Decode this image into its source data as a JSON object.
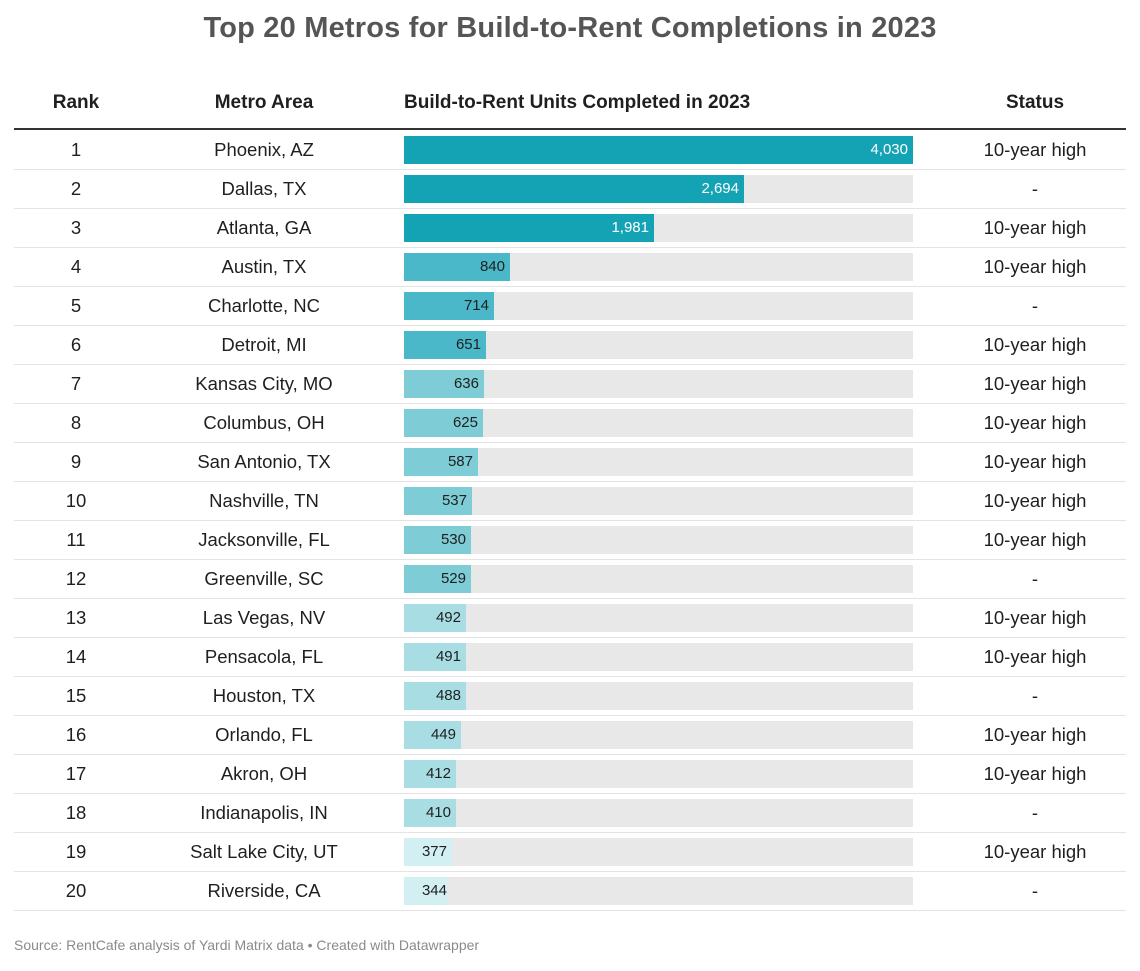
{
  "title": "Top 20 Metros for Build-to-Rent Completions in 2023",
  "headers": {
    "rank": "Rank",
    "metro": "Metro Area",
    "units": "Build-to-Rent Units Completed in 2023",
    "status": "Status"
  },
  "footer": {
    "source": "Source: RentCafe analysis of Yardi Matrix data",
    "separator": " • ",
    "credit": "Created with Datawrapper"
  },
  "colors": {
    "bar_dark": "#14a3b4",
    "bar_mid": "#4ab8c8",
    "bar_light": "#7dccd6",
    "bar_pale": "#a9dde4",
    "bar_palest": "#d2eff2",
    "track": "#e8e8e8"
  },
  "chart_data": {
    "type": "table",
    "columns": [
      "Rank",
      "Metro Area",
      "Build-to-Rent Units Completed in 2023",
      "Status"
    ],
    "scale_max": 4030,
    "rows": [
      {
        "rank": "1",
        "metro": "Phoenix, AZ",
        "value": 4030,
        "label": "4,030",
        "status": "10-year high"
      },
      {
        "rank": "2",
        "metro": "Dallas, TX",
        "value": 2694,
        "label": "2,694",
        "status": "-"
      },
      {
        "rank": "3",
        "metro": "Atlanta, GA",
        "value": 1981,
        "label": "1,981",
        "status": "10-year high"
      },
      {
        "rank": "4",
        "metro": "Austin, TX",
        "value": 840,
        "label": "840",
        "status": "10-year high"
      },
      {
        "rank": "5",
        "metro": "Charlotte, NC",
        "value": 714,
        "label": "714",
        "status": "-"
      },
      {
        "rank": "6",
        "metro": "Detroit, MI",
        "value": 651,
        "label": "651",
        "status": "10-year high"
      },
      {
        "rank": "7",
        "metro": "Kansas City, MO",
        "value": 636,
        "label": "636",
        "status": "10-year high"
      },
      {
        "rank": "8",
        "metro": "Columbus, OH",
        "value": 625,
        "label": "625",
        "status": "10-year high"
      },
      {
        "rank": "9",
        "metro": "San Antonio, TX",
        "value": 587,
        "label": "587",
        "status": "10-year high"
      },
      {
        "rank": "10",
        "metro": "Nashville, TN",
        "value": 537,
        "label": "537",
        "status": "10-year high"
      },
      {
        "rank": "11",
        "metro": "Jacksonville, FL",
        "value": 530,
        "label": "530",
        "status": "10-year high"
      },
      {
        "rank": "12",
        "metro": "Greenville, SC",
        "value": 529,
        "label": "529",
        "status": "-"
      },
      {
        "rank": "13",
        "metro": "Las Vegas, NV",
        "value": 492,
        "label": "492",
        "status": "10-year high"
      },
      {
        "rank": "14",
        "metro": "Pensacola, FL",
        "value": 491,
        "label": "491",
        "status": "10-year high"
      },
      {
        "rank": "15",
        "metro": "Houston, TX",
        "value": 488,
        "label": "488",
        "status": "-"
      },
      {
        "rank": "16",
        "metro": "Orlando, FL",
        "value": 449,
        "label": "449",
        "status": "10-year high"
      },
      {
        "rank": "17",
        "metro": "Akron, OH",
        "value": 412,
        "label": "412",
        "status": "10-year high"
      },
      {
        "rank": "18",
        "metro": "Indianapolis, IN",
        "value": 410,
        "label": "410",
        "status": "-"
      },
      {
        "rank": "19",
        "metro": "Salt Lake City, UT",
        "value": 377,
        "label": "377",
        "status": "10-year high"
      },
      {
        "rank": "20",
        "metro": "Riverside, CA",
        "value": 344,
        "label": "344",
        "status": "-"
      }
    ]
  }
}
